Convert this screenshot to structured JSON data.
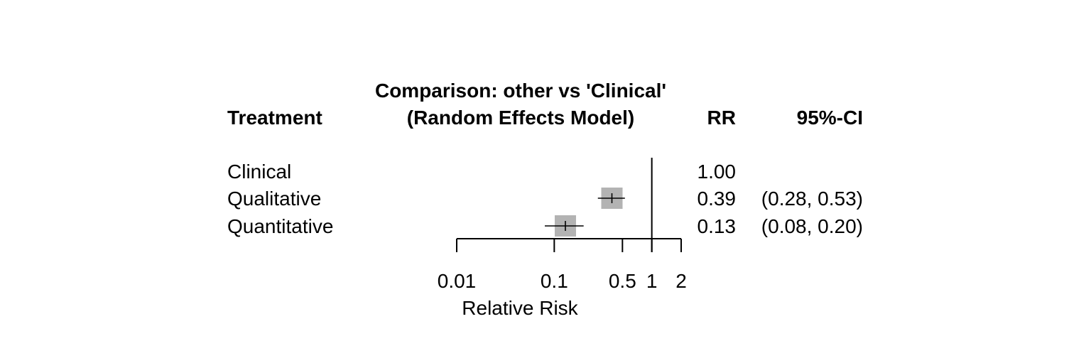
{
  "chart_data": {
    "type": "forest",
    "title_line1": "Comparison: other vs 'Clinical'",
    "title_line2": "(Random Effects Model)",
    "column_headers": {
      "treatment": "Treatment",
      "rr": "RR",
      "ci": "95%-CI"
    },
    "rows": [
      {
        "treatment": "Clinical",
        "rr": 1.0,
        "ci_low": null,
        "ci_high": null,
        "rr_text": "1.00",
        "ci_text": ""
      },
      {
        "treatment": "Qualitative",
        "rr": 0.39,
        "ci_low": 0.28,
        "ci_high": 0.53,
        "rr_text": "0.39",
        "ci_text": "(0.28, 0.53)"
      },
      {
        "treatment": "Quantitative",
        "rr": 0.13,
        "ci_low": 0.08,
        "ci_high": 0.2,
        "rr_text": "0.13",
        "ci_text": "(0.08, 0.20)"
      }
    ],
    "x_axis": {
      "label": "Relative Risk",
      "scale": "log",
      "ticks": [
        0.01,
        0.1,
        0.5,
        1,
        2
      ],
      "tick_labels": [
        "0.01",
        "0.1",
        "0.5",
        "1",
        "2"
      ],
      "range": [
        0.01,
        2
      ]
    },
    "reference_value": 1,
    "marker_color": "#b3b3b3",
    "line_color": "#000000"
  }
}
